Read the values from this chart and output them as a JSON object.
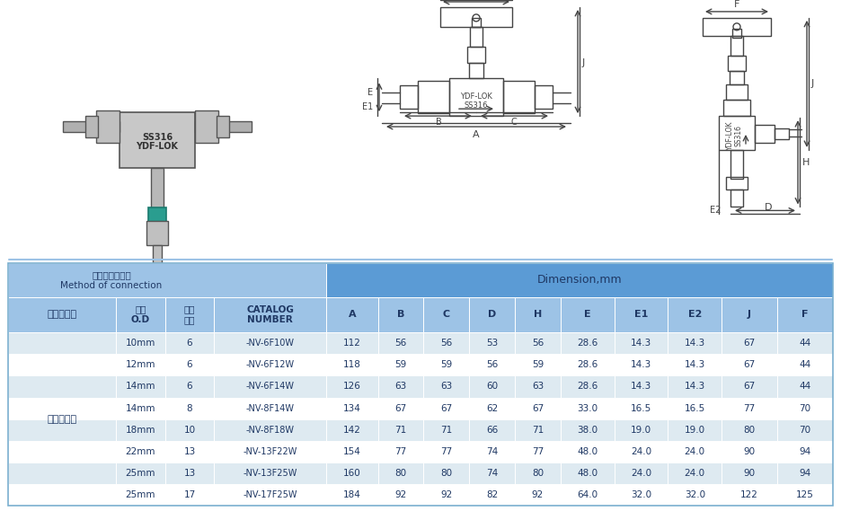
{
  "header_bg": "#5b9bd5",
  "subheader_bg": "#9dc3e6",
  "row_bg_odd": "#ffffff",
  "row_bg_even": "#deeaf1",
  "cell_text_color": "#1f3864",
  "dim_cols": [
    "A",
    "B",
    "C",
    "D",
    "H",
    "E",
    "E1",
    "E2",
    "J",
    "F"
  ],
  "row_data": [
    [
      "10mm",
      "6",
      "-NV-6F10W",
      "112",
      "56",
      "56",
      "53",
      "56",
      "28.6",
      "14.3",
      "14.3",
      "67",
      "44"
    ],
    [
      "12mm",
      "6",
      "-NV-6F12W",
      "118",
      "59",
      "59",
      "56",
      "59",
      "28.6",
      "14.3",
      "14.3",
      "67",
      "44"
    ],
    [
      "14mm",
      "6",
      "-NV-6F14W",
      "126",
      "63",
      "63",
      "60",
      "63",
      "28.6",
      "14.3",
      "14.3",
      "67",
      "44"
    ],
    [
      "14mm",
      "8",
      "-NV-8F14W",
      "134",
      "67",
      "67",
      "62",
      "67",
      "33.0",
      "16.5",
      "16.5",
      "77",
      "70"
    ],
    [
      "18mm",
      "10",
      "-NV-8F18W",
      "142",
      "71",
      "71",
      "66",
      "71",
      "38.0",
      "19.0",
      "19.0",
      "80",
      "70"
    ],
    [
      "22mm",
      "13",
      "-NV-13F22W",
      "154",
      "77",
      "77",
      "74",
      "77",
      "48.0",
      "24.0",
      "24.0",
      "90",
      "94"
    ],
    [
      "25mm",
      "13",
      "-NV-13F25W",
      "160",
      "80",
      "80",
      "74",
      "80",
      "48.0",
      "24.0",
      "24.0",
      "90",
      "94"
    ],
    [
      "25mm",
      "17",
      "-NV-17F25W",
      "184",
      "92",
      "92",
      "82",
      "92",
      "64.0",
      "32.0",
      "32.0",
      "122",
      "125"
    ]
  ],
  "merged_cell_label": "对焊转对焊",
  "top_bg": "#ffffff",
  "fig_width": 9.36,
  "fig_height": 5.69,
  "dpi": 100,
  "lc": "#444444",
  "lw": 1.0
}
